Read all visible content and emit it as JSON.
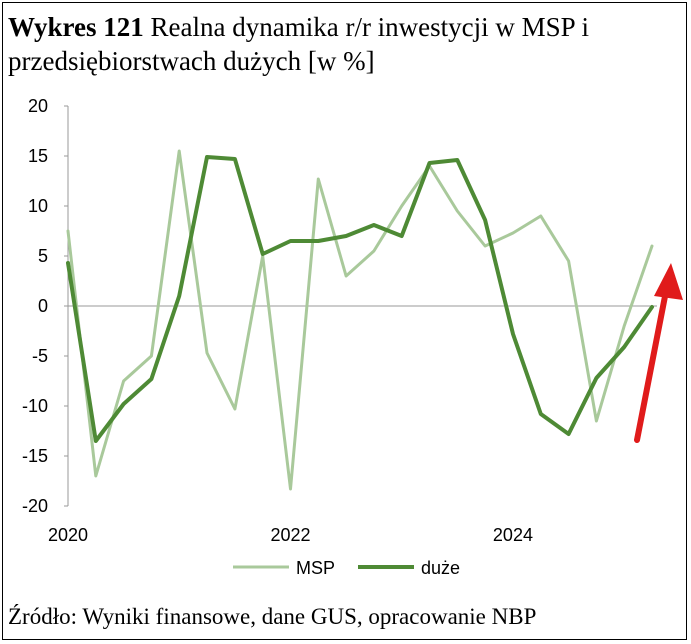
{
  "title_prefix": "Wykres 121",
  "title_rest": "Realna dynamika r/r inwestycji w MSP i przedsiębiorstwach dużych [w %]",
  "source": "Źródło: Wyniki finansowe, dane GUS, opracowanie NBP",
  "colors": {
    "msp": "#a9c99b",
    "duze": "#4e8a35",
    "arrow": "#e01b1b"
  },
  "chart_data": {
    "type": "line",
    "title": "Realna dynamika r/r inwestycji w MSP i przedsiębiorstwach dużych [w %]",
    "ylim": [
      -20,
      20
    ],
    "yticks": [
      20,
      15,
      10,
      5,
      0,
      -5,
      -10,
      -15,
      -20
    ],
    "xticks": [
      {
        "label": "2020",
        "q": 0
      },
      {
        "label": "2022",
        "q": 8
      },
      {
        "label": "2024",
        "q": 16
      }
    ],
    "legend_position": "bottom",
    "series": [
      {
        "name": "MSP",
        "color": "#a9c99b",
        "q": [
          0,
          1,
          2,
          3,
          4,
          5,
          6,
          7,
          8,
          9,
          10,
          11,
          12,
          13,
          14,
          15,
          16,
          17,
          18,
          19,
          20,
          21
        ],
        "values": [
          7.5,
          -17.0,
          -7.5,
          -5.0,
          15.5,
          -4.7,
          -10.3,
          5.0,
          -18.3,
          12.7,
          3.0,
          5.5,
          10.0,
          14.0,
          9.5,
          6.0,
          7.3,
          9.0,
          4.5,
          -11.5,
          -2.0,
          6.0
        ]
      },
      {
        "name": "duże",
        "color": "#4e8a35",
        "q": [
          0,
          1,
          2,
          3,
          4,
          5,
          6,
          7,
          8,
          9,
          10,
          11,
          12,
          13,
          14,
          15,
          16,
          17,
          18,
          19,
          20,
          21
        ],
        "values": [
          4.3,
          -13.5,
          -9.8,
          -7.3,
          1.0,
          14.9,
          14.7,
          5.2,
          6.5,
          6.5,
          7.0,
          8.1,
          7.0,
          14.3,
          14.6,
          8.6,
          -2.8,
          -10.8,
          -12.8,
          -7.2,
          -4.1,
          -0.1
        ]
      }
    ],
    "annotations": [
      {
        "type": "arrow",
        "color": "#e01b1b",
        "direction": "up"
      }
    ]
  }
}
